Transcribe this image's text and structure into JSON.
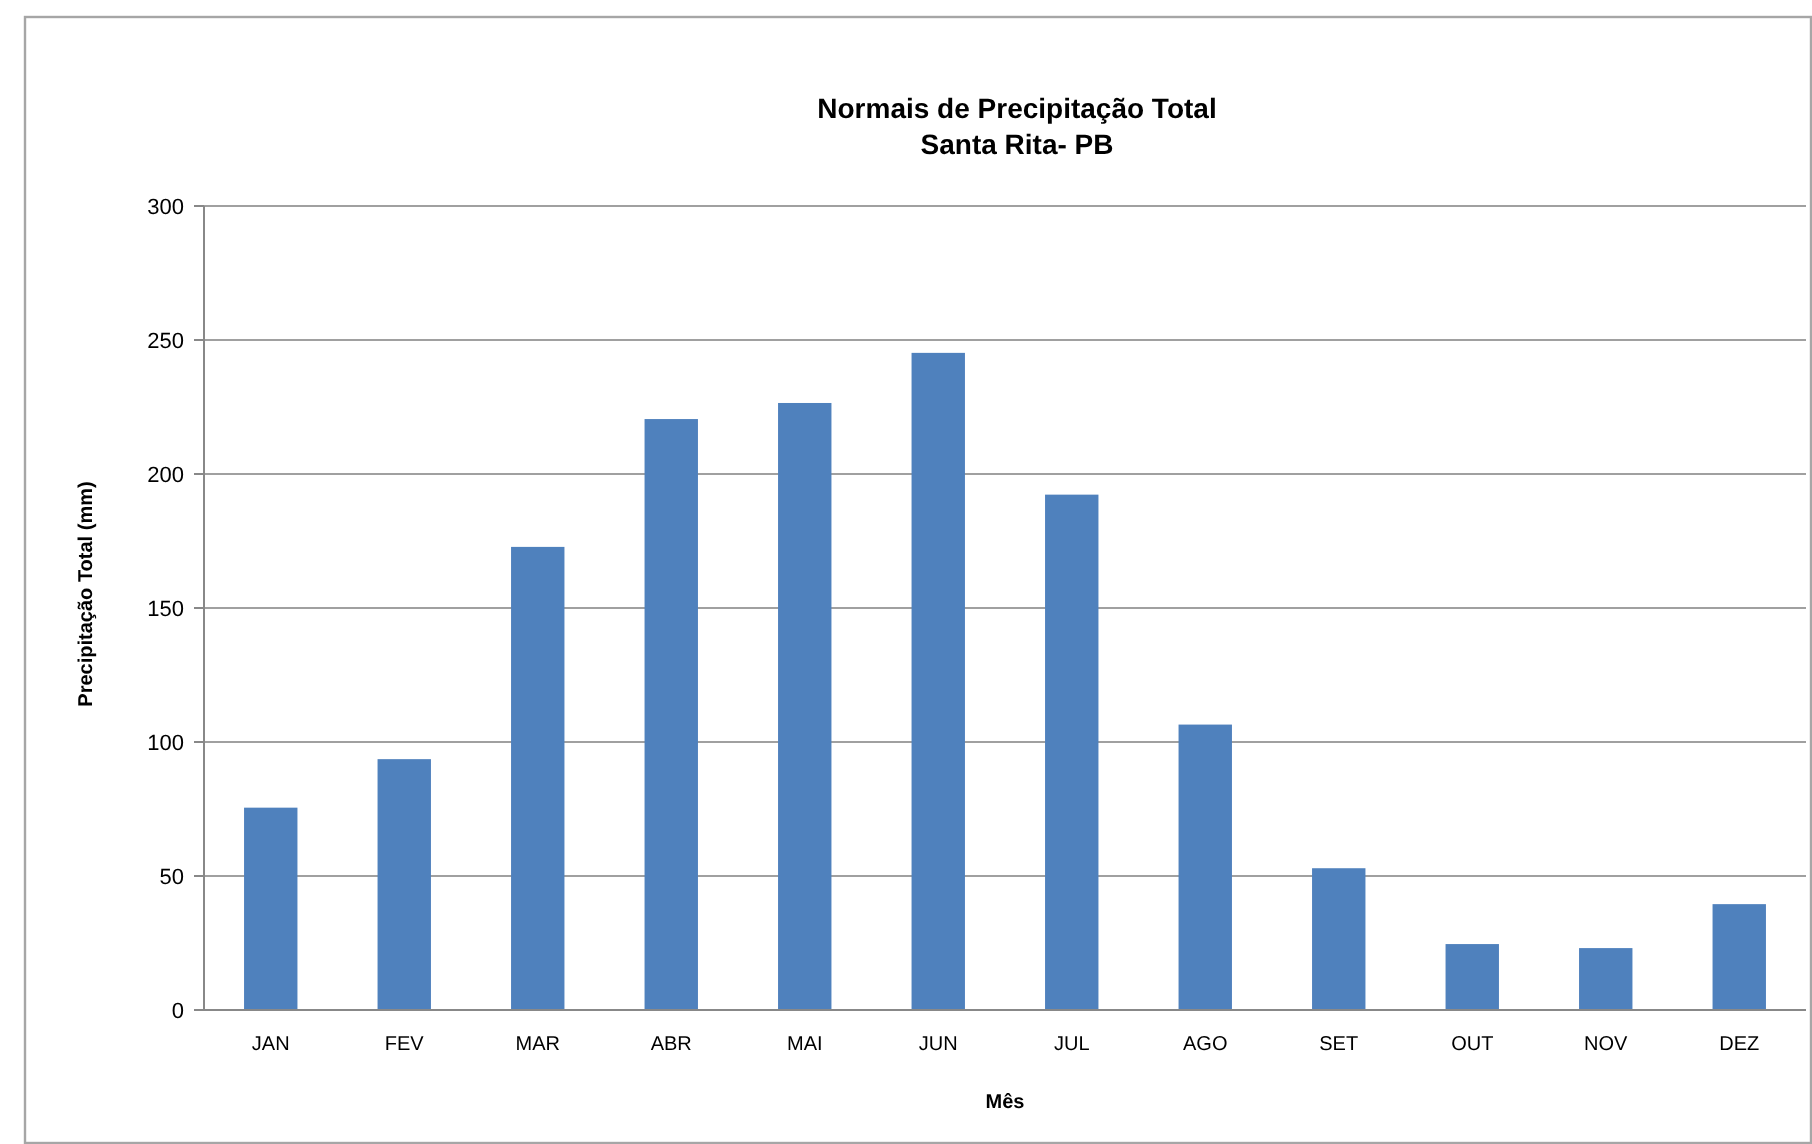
{
  "chart_data": {
    "type": "bar",
    "title": "Normais de Precipitação Total",
    "subtitle": "Santa Rita- PB",
    "xlabel": "Mês",
    "ylabel": "Precipitação Total (mm)",
    "categories": [
      "JAN",
      "FEV",
      "MAR",
      "ABR",
      "MAI",
      "JUN",
      "JUL",
      "AGO",
      "SET",
      "OUT",
      "NOV",
      "DEZ"
    ],
    "values": [
      75.5,
      93.6,
      172.8,
      220.5,
      226.5,
      245.2,
      192.3,
      106.5,
      52.9,
      24.6,
      23.1,
      39.5
    ],
    "color": "#4f81bd",
    "ylim": [
      0,
      300
    ],
    "yticks": [
      0,
      50,
      100,
      150,
      200,
      250,
      300
    ],
    "grid": "y"
  }
}
